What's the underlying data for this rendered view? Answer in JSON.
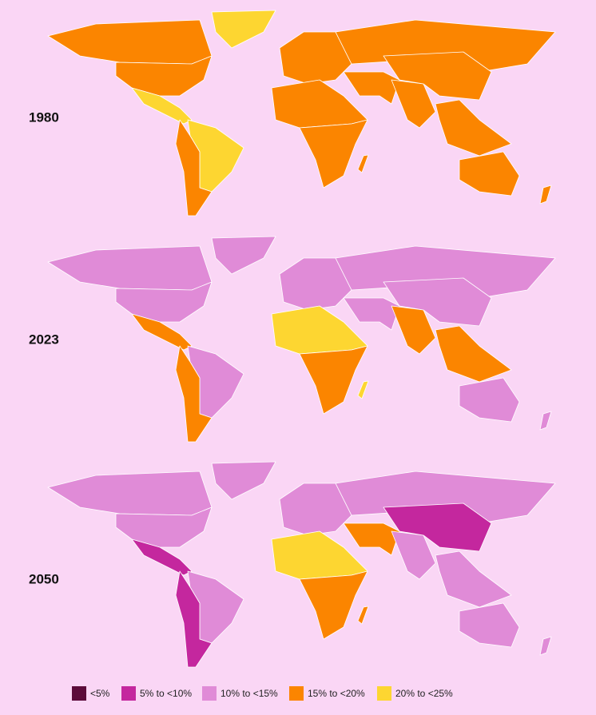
{
  "maps": [
    {
      "label": "1980"
    },
    {
      "label": "2023"
    },
    {
      "label": "2050"
    }
  ],
  "legend": [
    {
      "label": "<5%",
      "color": "#5c0b3a"
    },
    {
      "label": "5% to <10%",
      "color": "#c4279e"
    },
    {
      "label": "10% to <15%",
      "color": "#e08bd7"
    },
    {
      "label": "15% to <20%",
      "color": "#fb8500"
    },
    {
      "label": "20% to <25%",
      "color": "#fdd631"
    }
  ]
}
